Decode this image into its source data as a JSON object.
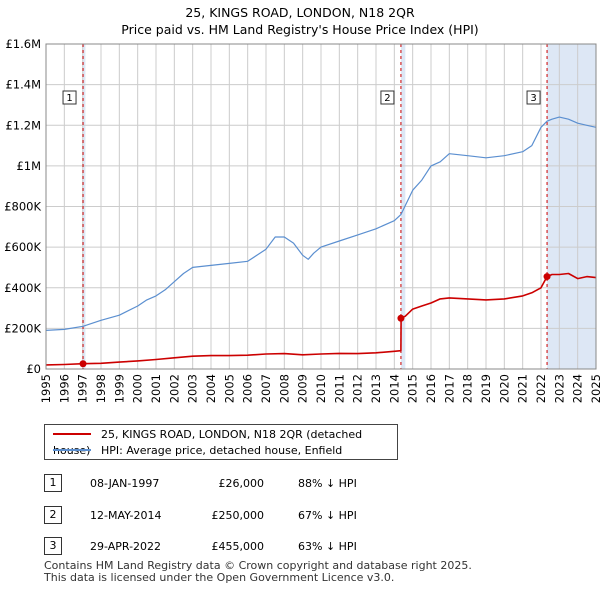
{
  "title_line1": "25, KINGS ROAD, LONDON, N18 2QR",
  "title_line2": "Price paid vs. HM Land Registry's House Price Index (HPI)",
  "colors": {
    "property": "#cc0000",
    "hpi": "#5b8fd0",
    "shade": "#dde7f5",
    "grid": "#cccccc"
  },
  "chart_data": {
    "type": "line",
    "title": "25, KINGS ROAD, LONDON, N18 2QR — Price paid vs. HM Land Registry's House Price Index (HPI)",
    "xlim": [
      1995,
      2025
    ],
    "ylim": [
      0,
      1600000
    ],
    "x_ticks": [
      "1995",
      "1996",
      "1997",
      "1998",
      "1999",
      "2000",
      "2001",
      "2002",
      "2003",
      "2004",
      "2005",
      "2006",
      "2007",
      "2008",
      "2009",
      "2010",
      "2011",
      "2012",
      "2013",
      "2014",
      "2015",
      "2016",
      "2017",
      "2018",
      "2019",
      "2020",
      "2021",
      "2022",
      "2023",
      "2024",
      "2025"
    ],
    "y_ticks": [
      {
        "value": 0,
        "label": "£0"
      },
      {
        "value": 200000,
        "label": "£200K"
      },
      {
        "value": 400000,
        "label": "£400K"
      },
      {
        "value": 600000,
        "label": "£600K"
      },
      {
        "value": 800000,
        "label": "£800K"
      },
      {
        "value": 1000000,
        "label": "£1M"
      },
      {
        "value": 1200000,
        "label": "£1.2M"
      },
      {
        "value": 1400000,
        "label": "£1.4M"
      },
      {
        "value": 1600000,
        "label": "£1.6M"
      }
    ],
    "shaded_ranges": [
      [
        1997.02,
        1997.15
      ],
      [
        2014.36,
        2014.6
      ],
      [
        2022.33,
        2025.0
      ]
    ],
    "series": [
      {
        "name": "25, KINGS ROAD, LONDON, N18 2QR (detached house)",
        "x": [
          1995.0,
          1996.0,
          1997.02,
          1998.0,
          1999.0,
          2000.0,
          2001.0,
          2002.0,
          2003.0,
          2004.0,
          2005.0,
          2006.0,
          2007.0,
          2008.0,
          2009.0,
          2010.0,
          2011.0,
          2012.0,
          2013.0,
          2014.0,
          2014.36,
          2014.37,
          2014.6,
          2015.0,
          2015.5,
          2016.0,
          2016.5,
          2017.0,
          2018.0,
          2019.0,
          2020.0,
          2021.0,
          2021.5,
          2022.0,
          2022.33,
          2022.6,
          2023.0,
          2023.5,
          2024.0,
          2024.5,
          2025.0
        ],
        "values": [
          20000,
          22000,
          26000,
          28000,
          34000,
          40000,
          47000,
          55000,
          63000,
          66000,
          66000,
          68000,
          74000,
          76000,
          70000,
          74000,
          77000,
          76000,
          80000,
          87000,
          90000,
          250000,
          260000,
          295000,
          310000,
          325000,
          345000,
          350000,
          345000,
          340000,
          345000,
          360000,
          375000,
          400000,
          455000,
          465000,
          465000,
          470000,
          445000,
          455000,
          450000
        ]
      },
      {
        "name": "HPI: Average price, detached house, Enfield",
        "x": [
          1995.0,
          1996.0,
          1997.02,
          1998.0,
          1999.0,
          2000.0,
          2000.5,
          2001.0,
          2001.5,
          2002.0,
          2002.5,
          2003.0,
          2004.0,
          2005.0,
          2006.0,
          2007.0,
          2007.5,
          2008.0,
          2008.5,
          2009.0,
          2009.3,
          2009.6,
          2010.0,
          2011.0,
          2012.0,
          2013.0,
          2014.0,
          2014.36,
          2015.0,
          2015.5,
          2016.0,
          2016.5,
          2017.0,
          2018.0,
          2019.0,
          2020.0,
          2021.0,
          2021.5,
          2022.0,
          2022.33,
          2022.6,
          2023.0,
          2023.5,
          2024.0,
          2024.5,
          2025.0
        ],
        "values": [
          190000,
          195000,
          210000,
          240000,
          265000,
          310000,
          340000,
          360000,
          390000,
          430000,
          470000,
          500000,
          510000,
          520000,
          530000,
          590000,
          650000,
          650000,
          620000,
          560000,
          540000,
          570000,
          600000,
          630000,
          660000,
          690000,
          730000,
          760000,
          880000,
          930000,
          1000000,
          1020000,
          1060000,
          1050000,
          1040000,
          1050000,
          1070000,
          1100000,
          1190000,
          1220000,
          1230000,
          1240000,
          1230000,
          1210000,
          1200000,
          1190000
        ]
      }
    ],
    "sales": [
      {
        "label": "1",
        "x": 1997.02,
        "value": 26000
      },
      {
        "label": "2",
        "x": 2014.36,
        "value": 250000
      },
      {
        "label": "3",
        "x": 2022.33,
        "value": 455000
      }
    ]
  },
  "legend": {
    "property": "25, KINGS ROAD, LONDON, N18 2QR (detached house)",
    "hpi": "HPI: Average price, detached house, Enfield"
  },
  "transactions": [
    {
      "num": "1",
      "date": "08-JAN-1997",
      "price": "£26,000",
      "hpi": "88% ↓ HPI"
    },
    {
      "num": "2",
      "date": "12-MAY-2014",
      "price": "£250,000",
      "hpi": "67% ↓ HPI"
    },
    {
      "num": "3",
      "date": "29-APR-2022",
      "price": "£455,000",
      "hpi": "63% ↓ HPI"
    }
  ],
  "footer": {
    "line1": "Contains HM Land Registry data © Crown copyright and database right 2025.",
    "line2": "This data is licensed under the Open Government Licence v3.0."
  }
}
